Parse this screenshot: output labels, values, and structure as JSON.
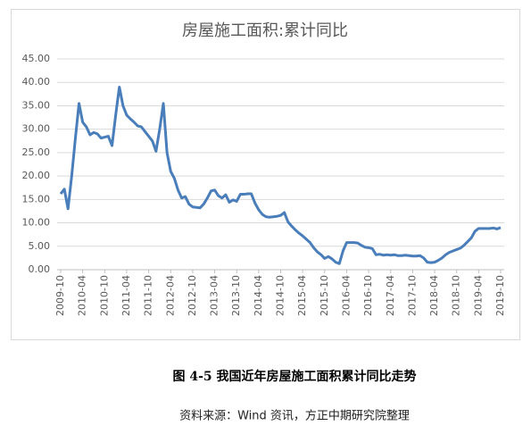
{
  "chart_data": {
    "type": "line",
    "title": "房屋施工面积:累计同比",
    "categories": [
      "2009-10",
      null,
      null,
      null,
      null,
      null,
      "2010-04",
      null,
      null,
      null,
      null,
      null,
      "2010-10",
      null,
      null,
      null,
      null,
      null,
      "2011-04",
      null,
      null,
      null,
      null,
      null,
      "2011-10",
      null,
      null,
      null,
      null,
      null,
      "2012-04",
      null,
      null,
      null,
      null,
      null,
      "2012-10",
      null,
      null,
      null,
      null,
      null,
      "2013-04",
      null,
      null,
      null,
      null,
      null,
      "2013-10",
      null,
      null,
      null,
      null,
      null,
      "2014-04",
      null,
      null,
      null,
      null,
      null,
      "2014-10",
      null,
      null,
      null,
      null,
      null,
      "2015-04",
      null,
      null,
      null,
      null,
      null,
      "2015-10",
      null,
      null,
      null,
      null,
      null,
      "2016-04",
      null,
      null,
      null,
      null,
      null,
      "2016-10",
      null,
      null,
      null,
      null,
      null,
      "2017-04",
      null,
      null,
      null,
      null,
      null,
      "2017-10",
      null,
      null,
      null,
      null,
      null,
      "2018-04",
      null,
      null,
      null,
      null,
      null,
      "2018-10",
      null,
      null,
      null,
      null,
      null,
      "2019-04",
      null,
      null,
      null,
      null,
      null,
      "2019-10"
    ],
    "values": [
      16.2,
      17.2,
      13.0,
      20,
      28,
      35.5,
      31.5,
      30.5,
      28.8,
      29.3,
      29.0,
      28.1,
      28.3,
      28.5,
      26.5,
      33,
      39,
      35,
      33,
      32.2,
      31.5,
      30.7,
      30.5,
      29.5,
      28.5,
      27.5,
      25.3,
      30,
      35.5,
      25,
      21,
      19.5,
      17,
      15.3,
      15.6,
      14,
      13.4,
      13.3,
      13.2,
      14,
      15.3,
      16.8,
      17,
      15.8,
      15.3,
      16,
      14.4,
      14.9,
      14.6,
      16.1,
      16.1,
      16.2,
      16.2,
      14.2,
      12.8,
      11.8,
      11.3,
      11.2,
      11.3,
      11.4,
      11.6,
      12.2,
      10.2,
      9.3,
      8.5,
      7.8,
      7.2,
      6.5,
      5.8,
      4.7,
      3.8,
      3.2,
      2.4,
      2.8,
      2.3,
      1.6,
      1.3,
      4.0,
      5.8,
      5.8,
      5.8,
      5.7,
      5.2,
      4.8,
      4.7,
      4.5,
      3.2,
      3.3,
      3.1,
      3.2,
      3.1,
      3.2,
      3.0,
      3.0,
      3.1,
      3.0,
      2.9,
      2.9,
      3.0,
      2.5,
      1.6,
      1.5,
      1.6,
      2.0,
      2.5,
      3.2,
      3.7,
      4.0,
      4.3,
      4.6,
      5.2,
      6.0,
      6.8,
      8.2,
      8.8,
      8.8,
      8.8,
      8.8,
      8.9,
      8.7,
      9.0
    ],
    "color": "#4a7ebb",
    "ylim": [
      0,
      45
    ],
    "yticks": [
      {
        "value": 0,
        "label": "0.00"
      },
      {
        "value": 5,
        "label": "5.00"
      },
      {
        "value": 10,
        "label": "10.00"
      },
      {
        "value": 15,
        "label": "15.00"
      },
      {
        "value": 20,
        "label": "20.00"
      },
      {
        "value": 25,
        "label": "25.00"
      },
      {
        "value": 30,
        "label": "30.00"
      },
      {
        "value": 35,
        "label": "35.00"
      },
      {
        "value": 40,
        "label": "40.00"
      },
      {
        "value": 45,
        "label": "45.00"
      }
    ],
    "grid": true
  },
  "figure_caption": "图 4-5  我国近年房屋施工面积累计同比走势",
  "source": "资料来源：Wind 资讯，方正中期研究院整理"
}
